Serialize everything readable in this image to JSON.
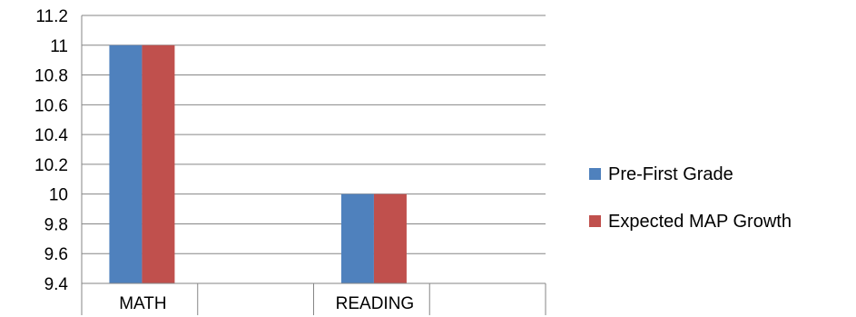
{
  "chart_data": {
    "type": "bar",
    "categories": [
      "MATH",
      "READING"
    ],
    "series": [
      {
        "name": "Pre-First Grade",
        "values": [
          11,
          10
        ],
        "color": "#4f81bd"
      },
      {
        "name": "Expected MAP Growth",
        "values": [
          11,
          10
        ],
        "color": "#c0504d"
      }
    ],
    "ylim": [
      9.4,
      11.2
    ],
    "yticks": [
      "9.4",
      "9.6",
      "9.8",
      "10",
      "10.2",
      "10.4",
      "10.6",
      "10.8",
      "11",
      "11.2"
    ],
    "grid": true,
    "legend_position": "right"
  }
}
